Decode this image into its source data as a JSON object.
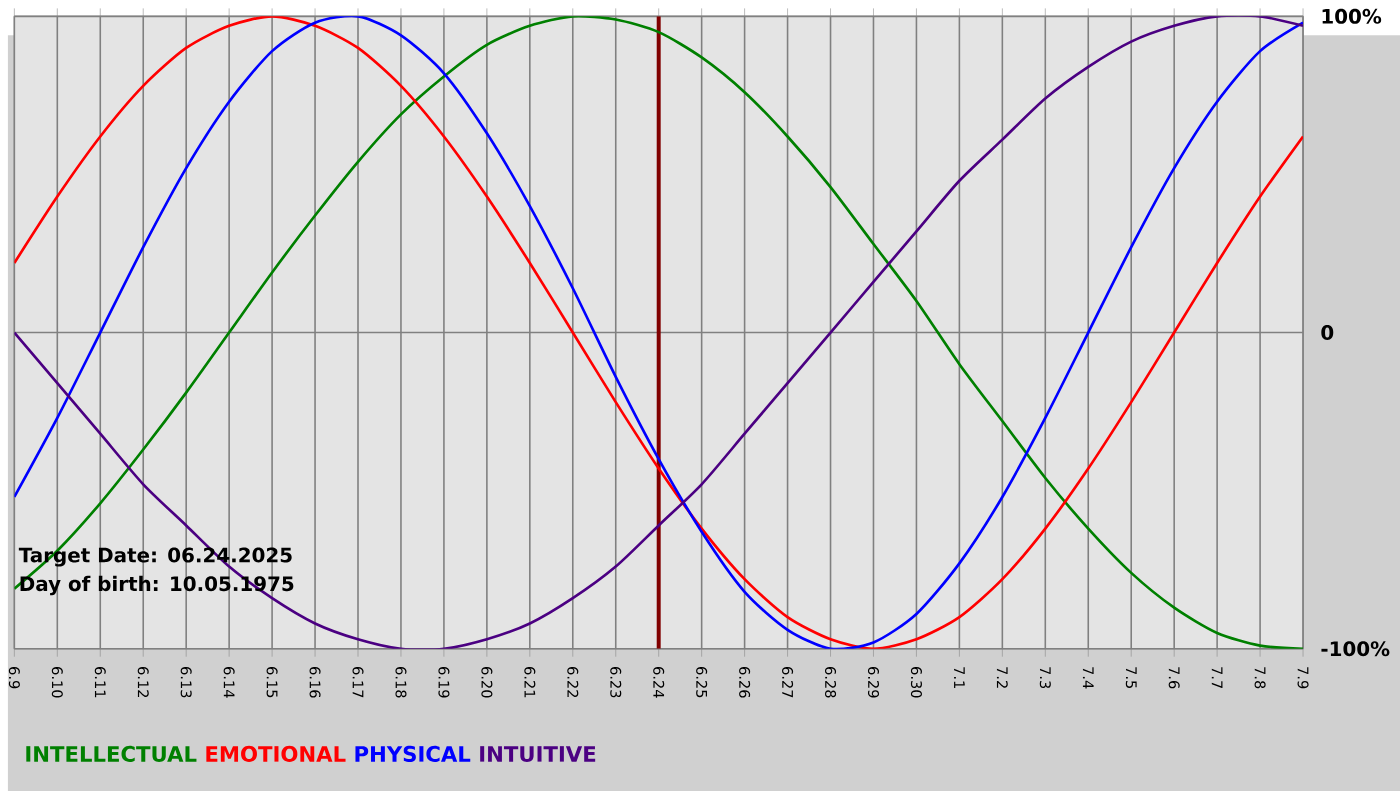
{
  "chart_data": {
    "type": "line",
    "categories": [
      "6.9",
      "6.10",
      "6.11",
      "6.12",
      "6.13",
      "6.14",
      "6.15",
      "6.16",
      "6.17",
      "6.18",
      "6.19",
      "6.20",
      "6.21",
      "6.22",
      "6.23",
      "6.24",
      "6.25",
      "6.26",
      "6.27",
      "6.28",
      "6.29",
      "6.30",
      "7.1",
      "7.2",
      "7.3",
      "7.4",
      "7.5",
      "7.6",
      "7.7",
      "7.8",
      "7.9"
    ],
    "series": [
      {
        "name": "INTELLECTUAL",
        "color": "#008000",
        "values": [
          -81,
          -69,
          -54,
          -37,
          -19,
          0,
          19,
          37,
          54,
          69,
          81,
          91,
          97,
          100,
          99,
          95,
          87,
          76,
          62,
          46,
          28,
          10,
          -10,
          -28,
          -46,
          -62,
          -76,
          -87,
          -95,
          -99,
          -100
        ]
      },
      {
        "name": "EMOTIONAL",
        "color": "#ff0000",
        "values": [
          22,
          43,
          62,
          78,
          90,
          97,
          100,
          97,
          90,
          78,
          62,
          43,
          22,
          0,
          -22,
          -43,
          -62,
          -78,
          -90,
          -97,
          -100,
          -97,
          -90,
          -78,
          -62,
          -43,
          -22,
          0,
          22,
          43,
          62
        ]
      },
      {
        "name": "PHYSICAL",
        "color": "#0000ff",
        "values": [
          -52,
          -27,
          0,
          27,
          52,
          73,
          89,
          98,
          100,
          94,
          82,
          63,
          40,
          14,
          -14,
          -40,
          -63,
          -82,
          -94,
          -100,
          -98,
          -89,
          -73,
          -52,
          -27,
          0,
          27,
          52,
          73,
          89,
          98
        ]
      },
      {
        "name": "INTUITIVE",
        "color": "#4b0082",
        "values": [
          0,
          -16,
          -32,
          -48,
          -61,
          -74,
          -84,
          -92,
          -97,
          -100,
          -100,
          -97,
          -92,
          -84,
          -74,
          -61,
          -48,
          -32,
          -16,
          0,
          16,
          32,
          48,
          61,
          74,
          84,
          92,
          97,
          100,
          100,
          97
        ]
      }
    ],
    "ylim": [
      -100,
      100
    ],
    "yticks": [
      {
        "value": 100,
        "label": "100%"
      },
      0,
      {
        "value": -100,
        "label": "-100%"
      }
    ],
    "grid": true,
    "legend": "bottom",
    "line_style": "solid",
    "ref_lines": [
      {
        "axis": "x",
        "value": "6.24",
        "color": "#800000"
      }
    ],
    "annotations": [
      "Target Date: 06.24.2025",
      "Day of birth: 10.05.1975"
    ]
  }
}
